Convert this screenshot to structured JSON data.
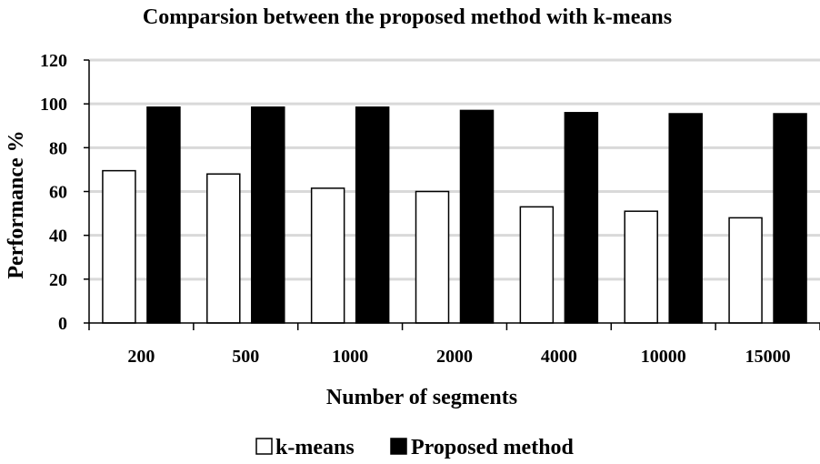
{
  "chart_data": {
    "type": "bar",
    "title": "Comparsion between the proposed method  with k-means",
    "xlabel": "Number of segments",
    "ylabel": "Performance %",
    "categories": [
      "200",
      "500",
      "1000",
      "2000",
      "4000",
      "10000",
      "15000"
    ],
    "series": [
      {
        "name": "k-means",
        "values": [
          69.5,
          68,
          61.5,
          60,
          53,
          51,
          48
        ],
        "color": "#ffffff",
        "stroke": "#000000"
      },
      {
        "name": "Proposed method",
        "values": [
          98.5,
          98.5,
          98.5,
          97,
          96,
          95.5,
          95.5
        ],
        "color": "#000000",
        "stroke": "#000000"
      }
    ],
    "ylim": [
      0,
      120
    ],
    "yticks": [
      0,
      20,
      40,
      60,
      80,
      100,
      120
    ],
    "grid": true,
    "legend_position": "bottom"
  }
}
